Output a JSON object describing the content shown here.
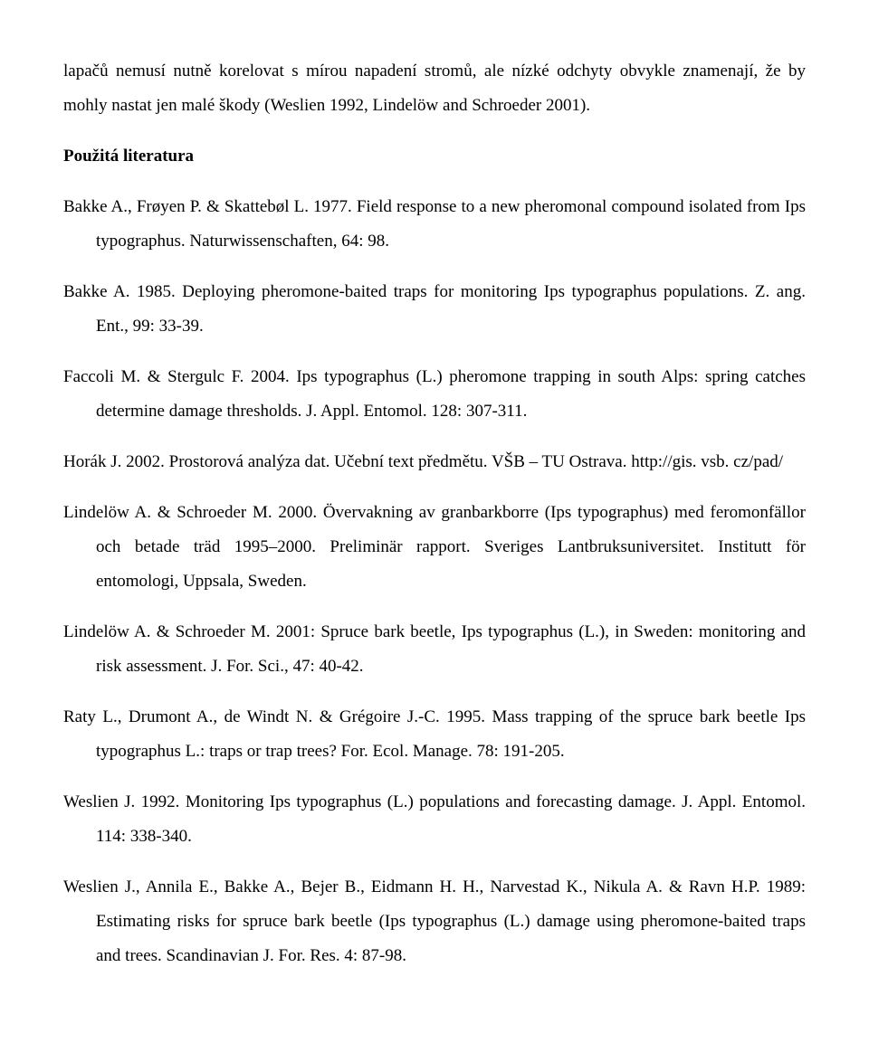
{
  "intro": "lapačů nemusí nutně korelovat s mírou napadení stromů, ale nízké odchyty obvykle znamenají, že by mohly nastat jen malé škody (Weslien 1992, Lindelöw and Schroeder 2001).",
  "heading": "Použitá literatura",
  "refs": [
    "Bakke A., Frøyen P. & Skattebøl L. 1977. Field response to a new pheromonal compound isolated from Ips typographus. Naturwissenschaften, 64: 98.",
    "Bakke A. 1985. Deploying pheromone-baited traps for monitoring Ips typographus populations. Z. ang. Ent., 99: 33-39.",
    "Faccoli M. & Stergulc F. 2004. Ips typographus (L.) pheromone trapping in south Alps: spring catches determine damage thresholds. J. Appl. Entomol. 128: 307-311.",
    "Horák J. 2002. Prostorová analýza dat. Učební text předmětu. VŠB – TU Ostrava. http://gis. vsb. cz/pad/",
    "Lindelöw A. & Schroeder M. 2000. Övervakning av granbarkborre (Ips typographus) med feromonfällor och betade träd 1995–2000. Preliminär rapport. Sveriges Lantbruksuniversitet. Institutt för entomologi, Uppsala, Sweden.",
    "Lindelöw A. & Schroeder M. 2001: Spruce bark beetle, Ips typographus (L.), in Sweden: monitoring and risk assessment. J. For. Sci., 47: 40-42.",
    "Raty L., Drumont A., de Windt N. & Grégoire J.-C. 1995. Mass trapping of the spruce bark beetle Ips typographus L.: traps or trap trees? For. Ecol. Manage. 78: 191-205.",
    "Weslien J. 1992. Monitoring Ips typographus (L.) populations and forecasting damage. J. Appl. Entomol. 114: 338-340.",
    "Weslien J., Annila E., Bakke A., Bejer B., Eidmann H. H., Narvestad K., Nikula A. & Ravn H.P. 1989: Estimating risks for spruce bark beetle (Ips typographus (L.) damage using pheromone-baited traps and trees. Scandinavian J. For. Res. 4: 87-98."
  ]
}
